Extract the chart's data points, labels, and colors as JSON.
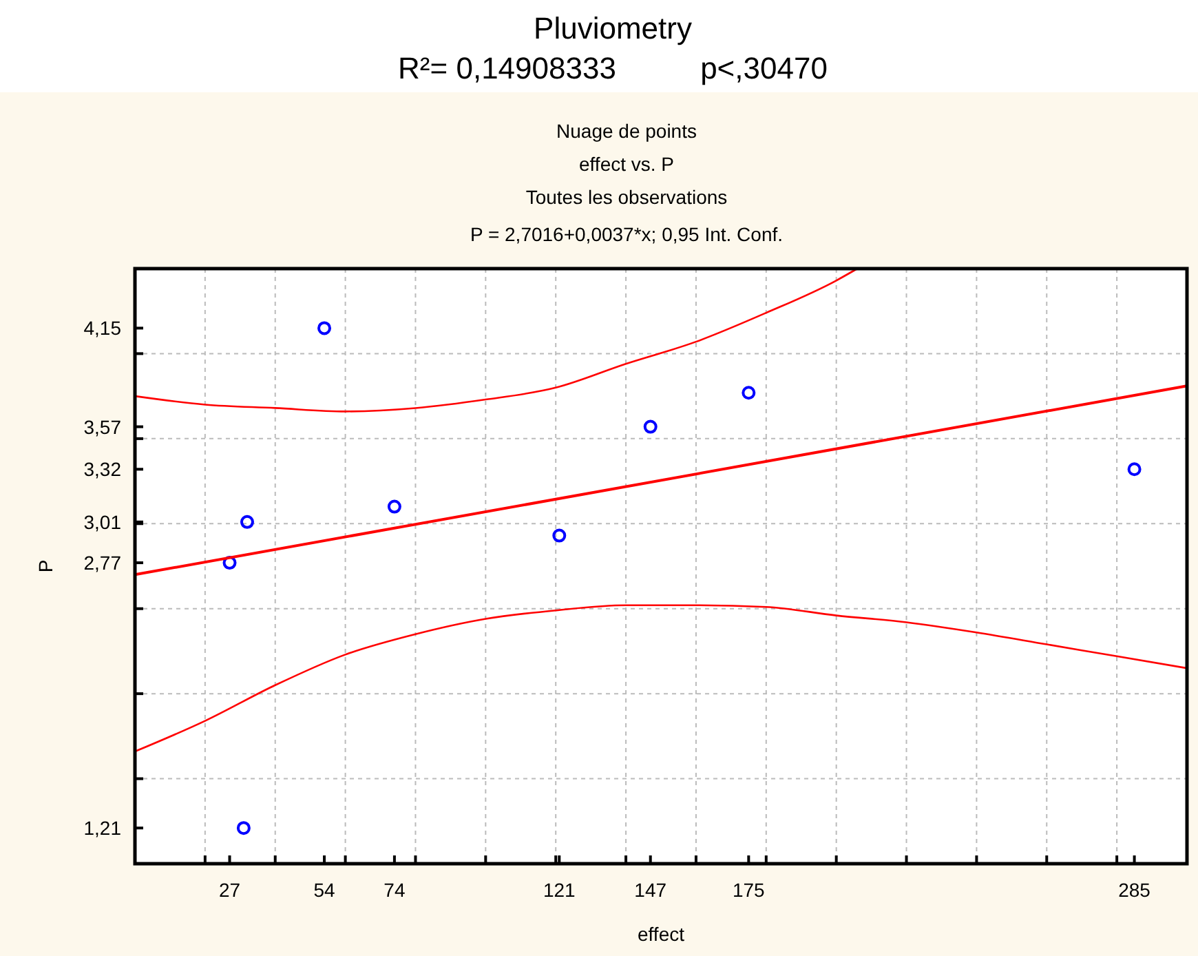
{
  "chart_data": {
    "type": "scatter",
    "title": "Pluviometry",
    "subtitle": "R²= 0,14908333          p<,30470",
    "annotations": [
      "Nuage de points",
      "effect vs. P",
      "Toutes les observations",
      "P = 2,7016+0,0037*x; 0,95 Int. Conf."
    ],
    "xlabel": "effect",
    "ylabel": "P",
    "xlim": [
      0,
      300
    ],
    "ylim": [
      1,
      4.5
    ],
    "xticks": [
      {
        "value": 20,
        "label": null
      },
      {
        "value": 40,
        "label": null
      },
      {
        "value": 60,
        "label": null
      },
      {
        "value": 80,
        "label": null
      },
      {
        "value": 100,
        "label": null
      },
      {
        "value": 120,
        "label": null
      },
      {
        "value": 140,
        "label": null
      },
      {
        "value": 160,
        "label": null
      },
      {
        "value": 180,
        "label": null
      },
      {
        "value": 200,
        "label": null
      },
      {
        "value": 220,
        "label": null
      },
      {
        "value": 240,
        "label": null
      },
      {
        "value": 260,
        "label": null
      },
      {
        "value": 280,
        "label": null
      },
      {
        "value": 27,
        "label": "27"
      },
      {
        "value": 54,
        "label": "54"
      },
      {
        "value": 74,
        "label": "74"
      },
      {
        "value": 121,
        "label": "121"
      },
      {
        "value": 147,
        "label": "147"
      },
      {
        "value": 175,
        "label": "175"
      },
      {
        "value": 285,
        "label": "285"
      }
    ],
    "yticks": [
      {
        "value": 1.5,
        "label": null
      },
      {
        "value": 2,
        "label": null
      },
      {
        "value": 2.5,
        "label": null
      },
      {
        "value": 3,
        "label": null
      },
      {
        "value": 3.5,
        "label": null
      },
      {
        "value": 4,
        "label": null
      },
      {
        "value": 1.21,
        "label": "1,21"
      },
      {
        "value": 2.77,
        "label": "2,77"
      },
      {
        "value": 3.01,
        "label": "3,01"
      },
      {
        "value": 3.32,
        "label": "3,32"
      },
      {
        "value": 3.57,
        "label": "3,57"
      },
      {
        "value": 4.15,
        "label": "4,15"
      }
    ],
    "grid": true,
    "series": [
      {
        "color": "#0000ff",
        "marker": "circle",
        "x": [
          27,
          31,
          32,
          54,
          74,
          121,
          147,
          175,
          285
        ],
        "values": [
          2.77,
          1.21,
          3.01,
          4.15,
          3.1,
          2.93,
          3.57,
          3.77,
          3.32
        ]
      },
      {
        "type": "line",
        "color": "#ff0000",
        "x": [
          0,
          300
        ],
        "values": [
          2.7,
          3.81
        ],
        "marker": "none"
      },
      {
        "type": "line",
        "color": "#ff0000",
        "x": [
          0,
          20,
          40,
          60,
          80,
          100,
          120,
          140,
          160,
          180,
          200,
          206
        ],
        "values": [
          3.75,
          3.7,
          3.68,
          3.66,
          3.68,
          3.73,
          3.8,
          3.94,
          4.07,
          4.24,
          4.43,
          4.5
        ],
        "marker": "none"
      },
      {
        "type": "line",
        "color": "#ff0000",
        "x": [
          0,
          20,
          40,
          60,
          80,
          100,
          120,
          140,
          160,
          180,
          200,
          220,
          240,
          260,
          280,
          300
        ],
        "values": [
          1.66,
          1.84,
          2.05,
          2.23,
          2.35,
          2.44,
          2.49,
          2.52,
          2.52,
          2.51,
          2.46,
          2.42,
          2.36,
          2.29,
          2.22,
          2.15
        ],
        "marker": "none"
      }
    ]
  }
}
